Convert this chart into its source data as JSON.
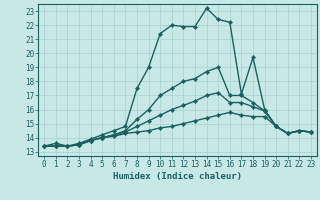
{
  "bg_color": "#c8e8e8",
  "grid_color": "#a8d0d0",
  "line_color": "#1a6060",
  "marker": "D",
  "markersize": 2.2,
  "linewidth": 1.0,
  "xlabel": "Humidex (Indice chaleur)",
  "xlim": [
    -0.5,
    23.5
  ],
  "ylim": [
    12.7,
    23.5
  ],
  "yticks": [
    13,
    14,
    15,
    16,
    17,
    18,
    19,
    20,
    21,
    22,
    23
  ],
  "xticks": [
    0,
    1,
    2,
    3,
    4,
    5,
    6,
    7,
    8,
    9,
    10,
    11,
    12,
    13,
    14,
    15,
    16,
    17,
    18,
    19,
    20,
    21,
    22,
    23
  ],
  "curve1_x": [
    0,
    1,
    2,
    3,
    4,
    5,
    6,
    7,
    8,
    9,
    10,
    11,
    12,
    13,
    14,
    15,
    16,
    17,
    18,
    19,
    20,
    21,
    22,
    23
  ],
  "curve1_y": [
    13.4,
    13.6,
    13.4,
    13.6,
    13.9,
    14.2,
    14.5,
    14.8,
    17.5,
    19.0,
    21.4,
    22.0,
    21.9,
    21.9,
    23.2,
    22.4,
    22.2,
    17.1,
    19.7,
    16.0,
    14.8,
    14.3,
    14.5,
    14.4
  ],
  "curve2_x": [
    0,
    1,
    2,
    3,
    4,
    5,
    6,
    7,
    8,
    9,
    10,
    11,
    12,
    13,
    14,
    15,
    16,
    17,
    18,
    19,
    20,
    21,
    22,
    23
  ],
  "curve2_y": [
    13.4,
    13.4,
    13.4,
    13.5,
    13.8,
    14.0,
    14.2,
    14.5,
    15.3,
    16.0,
    17.0,
    17.5,
    18.0,
    18.2,
    18.7,
    19.0,
    17.0,
    17.0,
    16.5,
    15.9,
    14.8,
    14.3,
    14.5,
    14.4
  ],
  "curve3_x": [
    0,
    1,
    2,
    3,
    4,
    5,
    6,
    7,
    8,
    9,
    10,
    11,
    12,
    13,
    14,
    15,
    16,
    17,
    18,
    19,
    20,
    21,
    22,
    23
  ],
  "curve3_y": [
    13.4,
    13.4,
    13.4,
    13.5,
    13.8,
    14.0,
    14.2,
    14.4,
    14.8,
    15.2,
    15.6,
    16.0,
    16.3,
    16.6,
    17.0,
    17.2,
    16.5,
    16.5,
    16.2,
    15.9,
    14.8,
    14.3,
    14.5,
    14.4
  ],
  "curve4_x": [
    0,
    1,
    2,
    3,
    4,
    5,
    6,
    7,
    8,
    9,
    10,
    11,
    12,
    13,
    14,
    15,
    16,
    17,
    18,
    19,
    20,
    21,
    22,
    23
  ],
  "curve4_y": [
    13.4,
    13.4,
    13.4,
    13.5,
    13.8,
    14.0,
    14.1,
    14.3,
    14.4,
    14.5,
    14.7,
    14.8,
    15.0,
    15.2,
    15.4,
    15.6,
    15.8,
    15.6,
    15.5,
    15.5,
    14.8,
    14.3,
    14.5,
    14.4
  ]
}
